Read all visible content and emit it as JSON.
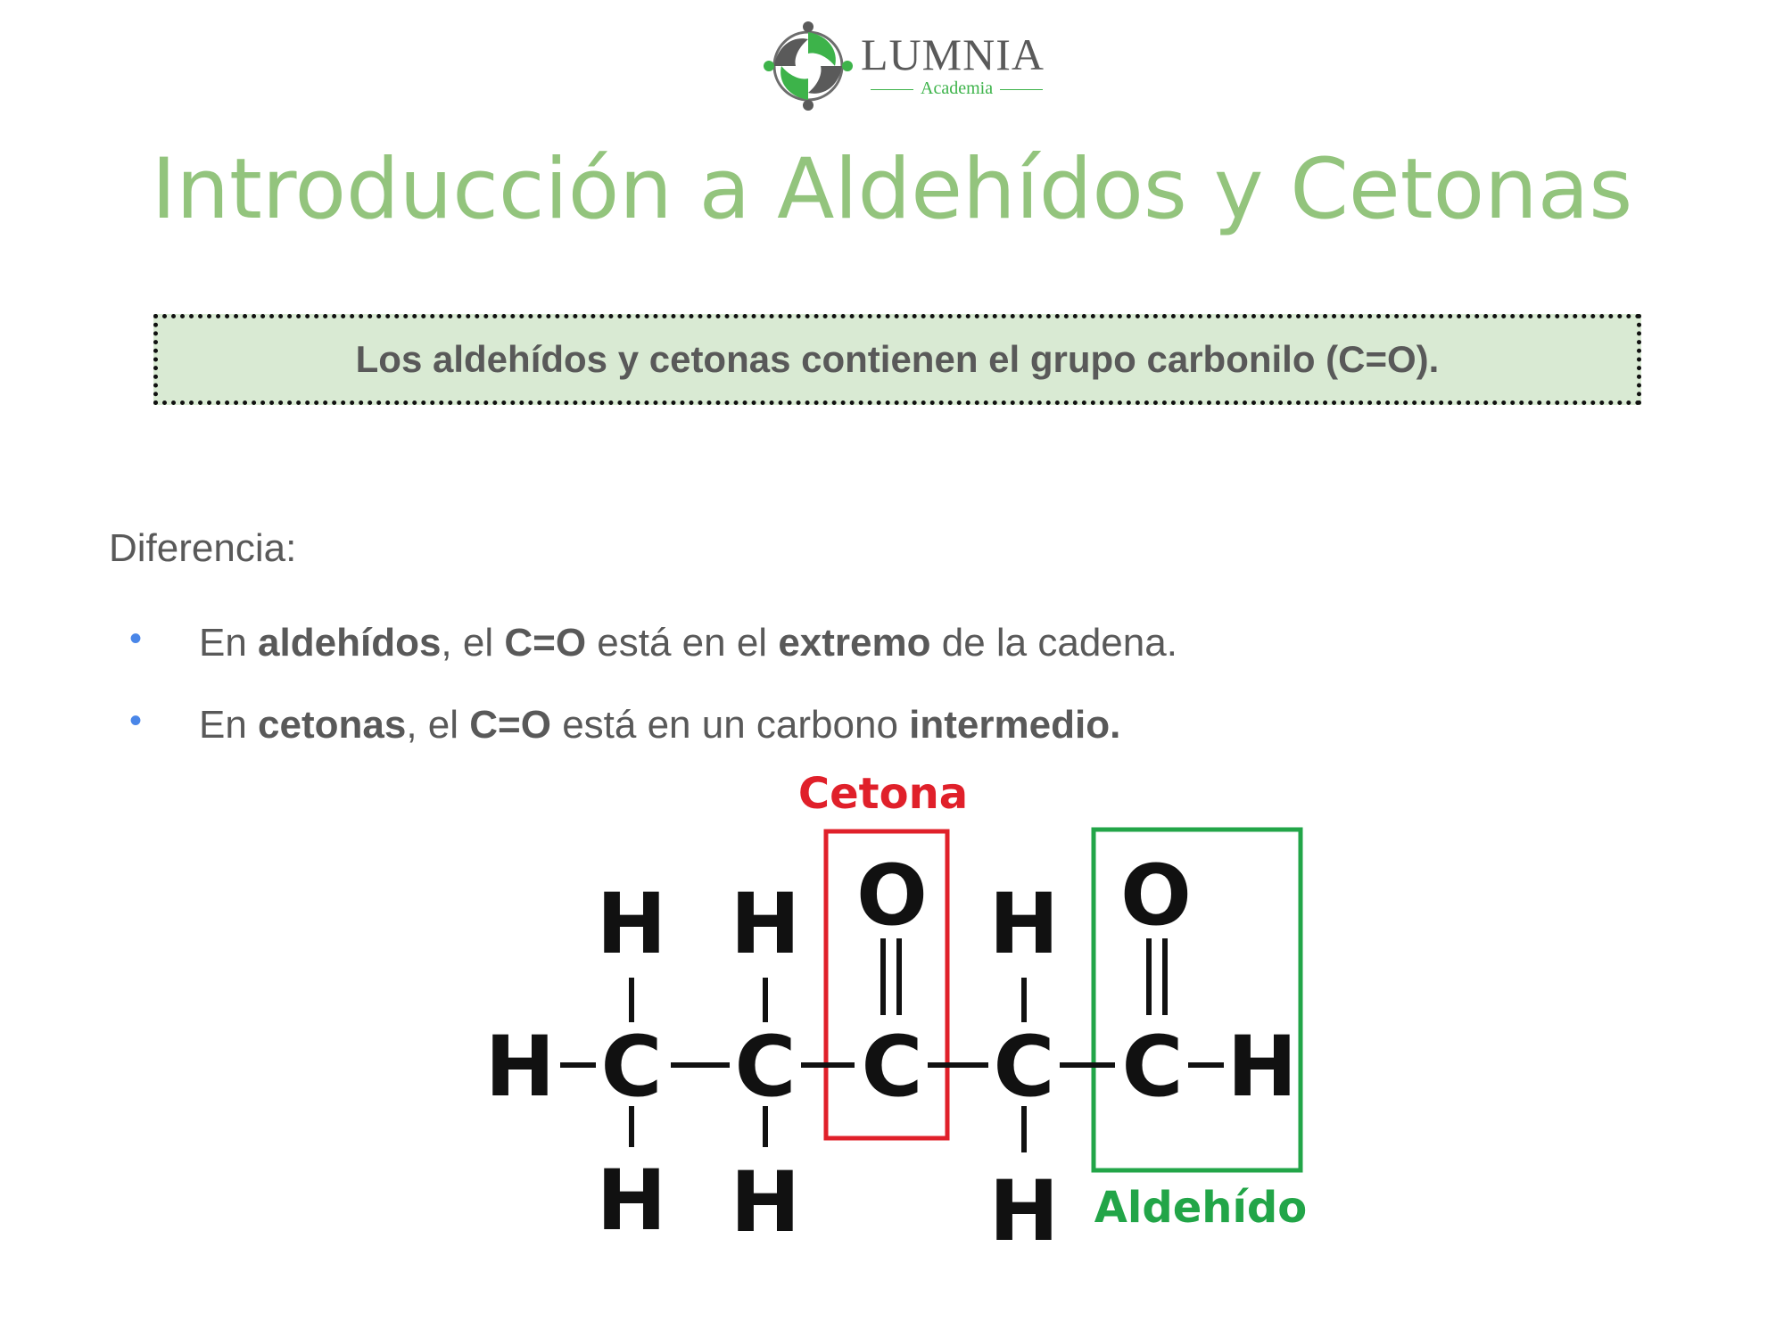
{
  "brand": {
    "name": "LUMNIA",
    "subtitle": "Academia",
    "colors": {
      "green": "#3db34a",
      "gray": "#5a5a5a"
    }
  },
  "title": "Introducción a Aldehídos y Cetonas",
  "callout": "Los aldehídos y cetonas contienen el grupo carbonilo (C=O).",
  "diferencia_label": "Diferencia:",
  "bullets": [
    {
      "p1": "En ",
      "b1": "aldehídos",
      "p2": ", el ",
      "b2": "C=O",
      "p3": " está en el ",
      "b3": "extremo",
      "p4": " de la cadena."
    },
    {
      "p1": "En ",
      "b1": "cetonas",
      "p2": ", el ",
      "b2": "C=O",
      "p3": " está en un carbono ",
      "b3": "intermedio.",
      "p4": ""
    }
  ],
  "molecule": {
    "atoms": {
      "hydrogen": "H",
      "carbon": "C",
      "oxygen": "O"
    },
    "ketone_label": "Cetona",
    "aldehyde_label": "Aldehído",
    "colors": {
      "ketone": "#e0202a",
      "aldehyde": "#22a548",
      "bond": "#111111"
    }
  }
}
